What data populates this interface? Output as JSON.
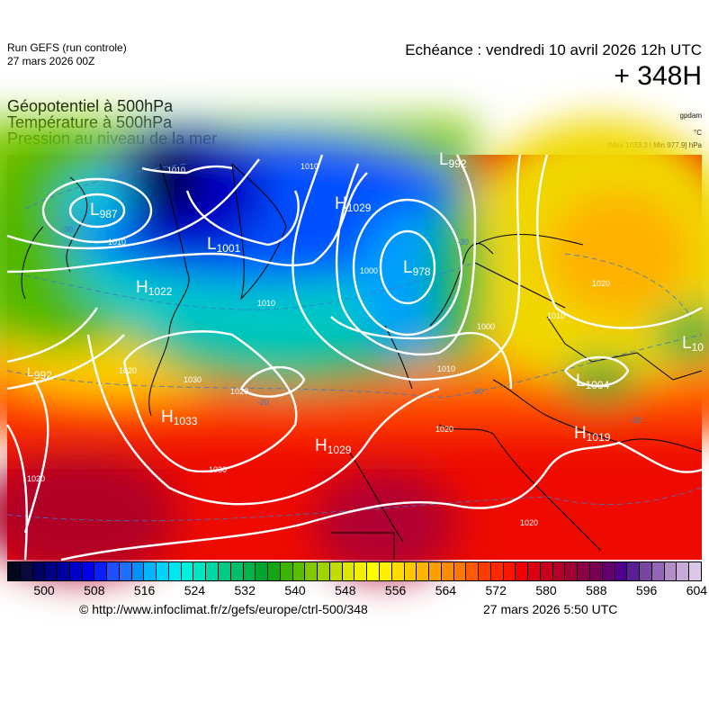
{
  "header": {
    "run_line1": "Run GEFS (run controle)",
    "run_line2": "27 mars 2026 00Z",
    "echeance": "Echéance : vendredi 10 avril 2026 12h UTC",
    "hours": "+ 348H",
    "titles": [
      "Géopotentiel à 500hPa",
      "Température à 500hPa",
      "Pression au niveau de la mer"
    ],
    "units": [
      "gpdam",
      "°C",
      "[Max 1033.3 | Min 977.9] hPa"
    ]
  },
  "map": {
    "pressure_centers": [
      {
        "type": "L",
        "value": "987"
      },
      {
        "type": "L",
        "value": "1001"
      },
      {
        "type": "H",
        "value": "1029"
      },
      {
        "type": "L",
        "value": "992"
      },
      {
        "type": "L",
        "value": "978"
      },
      {
        "type": "H",
        "value": "1022"
      },
      {
        "type": "H",
        "value": "1033"
      },
      {
        "type": "H",
        "value": "1029"
      },
      {
        "type": "L",
        "value": "1004"
      },
      {
        "type": "H",
        "value": "1019"
      },
      {
        "type": "L",
        "value": "10"
      },
      {
        "type": "L",
        "value": "992"
      }
    ],
    "isobar_labels": [
      "1010",
      "1010",
      "1010",
      "1010",
      "1000",
      "1000",
      "1020",
      "1010",
      "1020",
      "1030",
      "1030",
      "1020",
      "1020",
      "1020",
      "1010",
      "1020"
    ],
    "temperature_labels": [
      "-40",
      "-30",
      "-30",
      "-20",
      "-20",
      "-20"
    ]
  },
  "colorbar": {
    "ticks": [
      "500",
      "508",
      "516",
      "524",
      "532",
      "540",
      "548",
      "556",
      "564",
      "572",
      "580",
      "588",
      "596",
      "604"
    ],
    "colors": [
      "#06061e",
      "#0a0a3c",
      "#000064",
      "#000082",
      "#0000a0",
      "#0000c8",
      "#0000e6",
      "#0a1eff",
      "#1e50ff",
      "#1e6eff",
      "#0090ff",
      "#00b4ff",
      "#00d2ff",
      "#00e6f0",
      "#00f0dc",
      "#00e6c3",
      "#00d7a5",
      "#00c887",
      "#00be69",
      "#00b44b",
      "#00a52d",
      "#14a514",
      "#3cb400",
      "#5abe00",
      "#82c800",
      "#a0d200",
      "#c3dc00",
      "#dce600",
      "#f0f000",
      "#ffff00",
      "#fff000",
      "#ffdc00",
      "#ffc800",
      "#ffb400",
      "#ffa000",
      "#ff8c00",
      "#ff7800",
      "#ff5a00",
      "#ff3c00",
      "#ff2800",
      "#ff1400",
      "#f00000",
      "#dc0014",
      "#c8001e",
      "#b40028",
      "#a00032",
      "#8c0046",
      "#780050",
      "#64006e",
      "#50008c",
      "#5a1e96",
      "#7846a0",
      "#9664b4",
      "#b48cc8",
      "#c8aad7",
      "#dcc8e6"
    ]
  },
  "footer": {
    "url": "© http://www.infoclimat.fr/z/gefs/europe/ctrl-500/348",
    "time": "27 mars 2026  5:50 UTC"
  }
}
